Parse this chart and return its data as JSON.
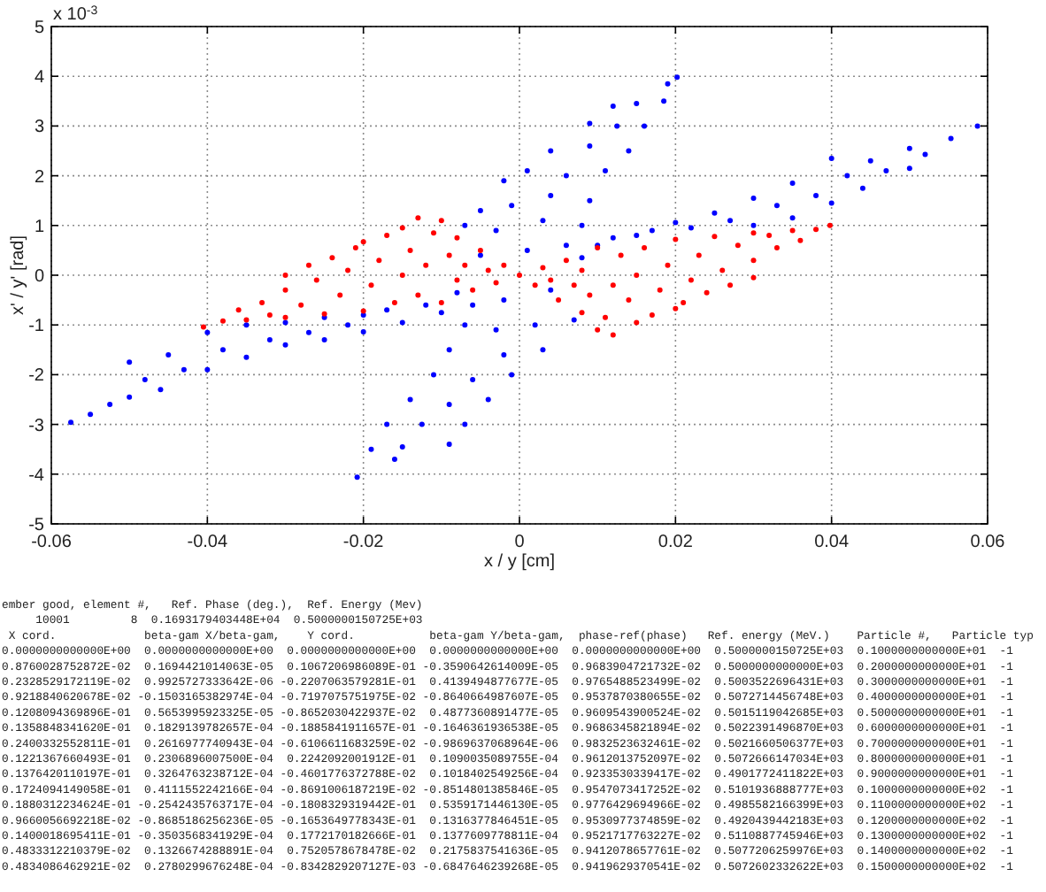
{
  "chart_data": {
    "type": "scatter",
    "xlabel": "x / y [cm]",
    "ylabel": "x' / y' [rad]",
    "xlim": [
      -0.06,
      0.06
    ],
    "xticks": [
      -0.06,
      -0.04,
      -0.02,
      0,
      0.02,
      0.04,
      0.06
    ],
    "ylim": [
      -5,
      5
    ],
    "yticks": [
      -5,
      -4,
      -3,
      -2,
      -1,
      0,
      1,
      2,
      3,
      4,
      5
    ],
    "grid": true,
    "marker": "circle",
    "series": [
      {
        "color": "#0000ff",
        "x": [
          0.0202,
          0.019,
          0.0185,
          0.015,
          0.012,
          0.016,
          0.0125,
          0.009,
          0.014,
          0.009,
          0.004,
          0.011,
          0.006,
          0.001,
          -0.002,
          0.009,
          0.004,
          -0.001,
          -0.005,
          0.008,
          0.003,
          -0.003,
          -0.007,
          0.006,
          0.001,
          -0.005,
          0.004,
          -0.002,
          -0.006,
          0.007,
          0.002,
          -0.003,
          -0.007,
          0.003,
          -0.002,
          -0.009,
          -0.001,
          -0.006,
          -0.011,
          -0.004,
          -0.009,
          -0.014,
          -0.007,
          -0.0125,
          -0.017,
          -0.009,
          -0.015,
          -0.019,
          -0.016,
          -0.0208,
          -0.0575,
          -0.055,
          -0.0525,
          -0.05,
          -0.05,
          -0.048,
          -0.046,
          -0.045,
          -0.043,
          -0.04,
          -0.04,
          -0.038,
          -0.035,
          -0.035,
          -0.032,
          -0.03,
          -0.03,
          -0.027,
          -0.025,
          -0.025,
          -0.022,
          -0.02,
          -0.02,
          -0.017,
          -0.015,
          -0.012,
          -0.01,
          -0.008,
          0.008,
          0.01,
          0.012,
          0.015,
          0.017,
          0.02,
          0.022,
          0.025,
          0.027,
          0.03,
          0.03,
          0.033,
          0.035,
          0.035,
          0.038,
          0.04,
          0.04,
          0.042,
          0.044,
          0.045,
          0.047,
          0.05,
          0.05,
          0.052,
          0.0553,
          0.0587
        ],
        "values": [
          3.98,
          3.85,
          3.5,
          3.45,
          3.4,
          3.0,
          3.0,
          3.05,
          2.5,
          2.6,
          2.5,
          2.1,
          2.0,
          2.1,
          1.9,
          1.5,
          1.6,
          1.4,
          1.3,
          1.0,
          1.1,
          0.9,
          1.0,
          0.6,
          0.5,
          0.4,
          -0.3,
          -0.5,
          -0.6,
          -0.9,
          -1.0,
          -1.1,
          -1.0,
          -1.5,
          -1.6,
          -1.5,
          -2.0,
          -2.1,
          -2.0,
          -2.5,
          -2.6,
          -2.5,
          -3.0,
          -3.0,
          -3.0,
          -3.4,
          -3.45,
          -3.5,
          -3.7,
          -4.06,
          -2.96,
          -2.8,
          -2.6,
          -2.45,
          -1.75,
          -2.1,
          -2.3,
          -1.6,
          -1.9,
          -1.9,
          -1.15,
          -1.5,
          -1.65,
          -1.0,
          -1.3,
          -1.4,
          -0.95,
          -1.15,
          -1.3,
          -0.85,
          -1.0,
          -1.14,
          -0.8,
          -0.7,
          -0.95,
          -0.6,
          -0.75,
          -0.35,
          0.35,
          0.6,
          0.75,
          0.8,
          0.9,
          1.06,
          0.95,
          1.25,
          1.1,
          1.55,
          1.0,
          1.4,
          1.85,
          1.15,
          1.6,
          2.35,
          1.45,
          2.0,
          1.75,
          2.3,
          2.1,
          2.55,
          2.15,
          2.43,
          2.75,
          3.0
        ]
      },
      {
        "color": "#ff0000",
        "x": [
          -0.0405,
          -0.038,
          -0.036,
          -0.035,
          -0.033,
          -0.032,
          -0.03,
          -0.03,
          -0.03,
          -0.028,
          -0.027,
          -0.026,
          -0.025,
          -0.024,
          -0.023,
          -0.022,
          -0.021,
          -0.02,
          -0.02,
          -0.019,
          -0.018,
          -0.017,
          -0.016,
          -0.015,
          -0.015,
          -0.014,
          -0.013,
          -0.013,
          -0.012,
          -0.011,
          -0.01,
          -0.01,
          -0.009,
          -0.008,
          -0.008,
          -0.007,
          -0.006,
          -0.005,
          -0.004,
          -0.003,
          -0.002,
          0,
          0.002,
          0.003,
          0.004,
          0.005,
          0.006,
          0.007,
          0.008,
          0.008,
          0.009,
          0.01,
          0.01,
          0.011,
          0.012,
          0.012,
          0.013,
          0.014,
          0.015,
          0.015,
          0.016,
          0.017,
          0.018,
          0.019,
          0.02,
          0.02,
          0.021,
          0.022,
          0.023,
          0.024,
          0.025,
          0.026,
          0.027,
          0.028,
          0.03,
          0.03,
          0.03,
          0.032,
          0.033,
          0.035,
          0.036,
          0.038,
          0.0398
        ],
        "values": [
          -1.04,
          -0.92,
          -0.7,
          -0.9,
          -0.55,
          -0.8,
          -0.3,
          0,
          -0.85,
          -0.6,
          0.2,
          -0.1,
          -0.78,
          0.35,
          -0.4,
          0.1,
          0.55,
          -0.72,
          0.67,
          -0.2,
          0.3,
          0.8,
          -0.55,
          0.95,
          0,
          0.5,
          1.15,
          -0.4,
          0.2,
          0.85,
          1.1,
          -0.55,
          0.4,
          -0.1,
          0.75,
          0.2,
          -0.3,
          0.5,
          0.1,
          -0.15,
          0.2,
          0,
          -0.2,
          0.15,
          -0.1,
          -0.5,
          0.3,
          -0.2,
          -0.75,
          0.1,
          -0.4,
          0.55,
          -1.1,
          -0.85,
          -0.2,
          -1.2,
          0.4,
          -0.5,
          -0.95,
          0,
          0.55,
          -0.8,
          -0.3,
          0.2,
          -0.67,
          0.72,
          -0.55,
          -0.1,
          0.4,
          -0.35,
          0.78,
          0.1,
          -0.2,
          0.6,
          0.3,
          0.85,
          -0.05,
          0.8,
          0.55,
          0.9,
          0.7,
          0.92,
          1.0
        ]
      }
    ],
    "annotations": [
      "x 10$^{-3}$",
      "ember good, element #,   Ref. Phase (deg.),  Ref. Energy (Mev)",
      "     10001         8  0.1693179403448E+04  0.5000000150725E+03",
      " X cord.             beta-gam X/beta-gam,    Y cord.           beta-gam Y/beta-gam,  phase-ref(phase)   Ref. energy (MeV.)    Particle #,   Particle typ",
      "0.0000000000000E+00  0.0000000000000E+00  0.0000000000000E+00  0.0000000000000E+00  0.0000000000000E+00  0.5000000150725E+03  0.1000000000000E+01  -1",
      "0.8760028752872E-02  0.1694421014063E-05  0.1067206986089E-01 -0.3590642614009E-05  0.9683904721732E-02  0.5000000000000E+03  0.2000000000000E+01  -1",
      "0.2328529172119E-02  0.9925727333642E-06 -0.2207063579281E-01  0.4139494877677E-05  0.9765488523499E-02  0.5003522696431E+03  0.3000000000000E+01  -1",
      "0.9218840620678E-02 -0.1503165382974E-04 -0.7197075751975E-02 -0.8640664987607E-05  0.9537870380655E-02  0.5072714456748E+03  0.4000000000000E+01  -1",
      "0.1208094369896E-01  0.5653995923325E-05 -0.8652030422937E-02  0.4877360891477E-05  0.9609543900524E-02  0.5015119042685E+03  0.5000000000000E+01  -1",
      "0.1358848341620E-01  0.1829139782657E-04 -0.1885841911657E-01 -0.1646361936538E-05  0.9686345821894E-02  0.5022391496870E+03  0.6000000000000E+01  -1",
      "0.2400332552811E-01  0.2616977740943E-04 -0.6106611683259E-02 -0.9869637068964E-06  0.9832523632461E-02  0.5021660506377E+03  0.7000000000000E+01  -1",
      "0.1221367660493E-01  0.2306896007500E-04  0.2242092001912E-01  0.1090035089755E-04  0.9612013752097E-02  0.5072666147034E+03  0.8000000000000E+01  -1",
      "0.1376420110197E-01  0.3264763238712E-04 -0.4601776372788E-02  0.1018402549256E-04  0.9233530339417E-02  0.4901772411822E+03  0.9000000000000E+01  -1",
      "0.1724094149058E-01  0.4111552242166E-04 -0.8691006187219E-02 -0.8514801385846E-05  0.9547073417252E-02  0.5101936888777E+03  0.1000000000000E+02  -1",
      "0.1880312234624E-01 -0.2542435763717E-04 -0.1808329319442E-01  0.5359171446130E-05  0.9776429694966E-02  0.4985582166399E+03  0.1100000000000E+02  -1",
      "0.9660056692218E-02 -0.8685186256236E-05 -0.1653649778343E-01  0.1316377846451E-05  0.9530977374859E-02  0.4920439442183E+03  0.1200000000000E+02  -1",
      "0.1400018695411E-01 -0.3503568341929E-04  0.1772170182666E-01  0.1377609778811E-04  0.9521717763227E-02  0.5110887745946E+03  0.1300000000000E+02  -1",
      "0.4833312210379E-02  0.1326674288891E-04  0.7520578678478E-02  0.2175837541636E-05  0.9412078657761E-02  0.5077206259976E+03  0.1400000000000E+02  -1",
      "0.4834086462921E-02  0.2780299676248E-04 -0.8342829207127E-03 -0.6847646239268E-05  0.9419629370541E-02  0.5072602332622E+03  0.1500000000000E+02  -1"
    ]
  }
}
